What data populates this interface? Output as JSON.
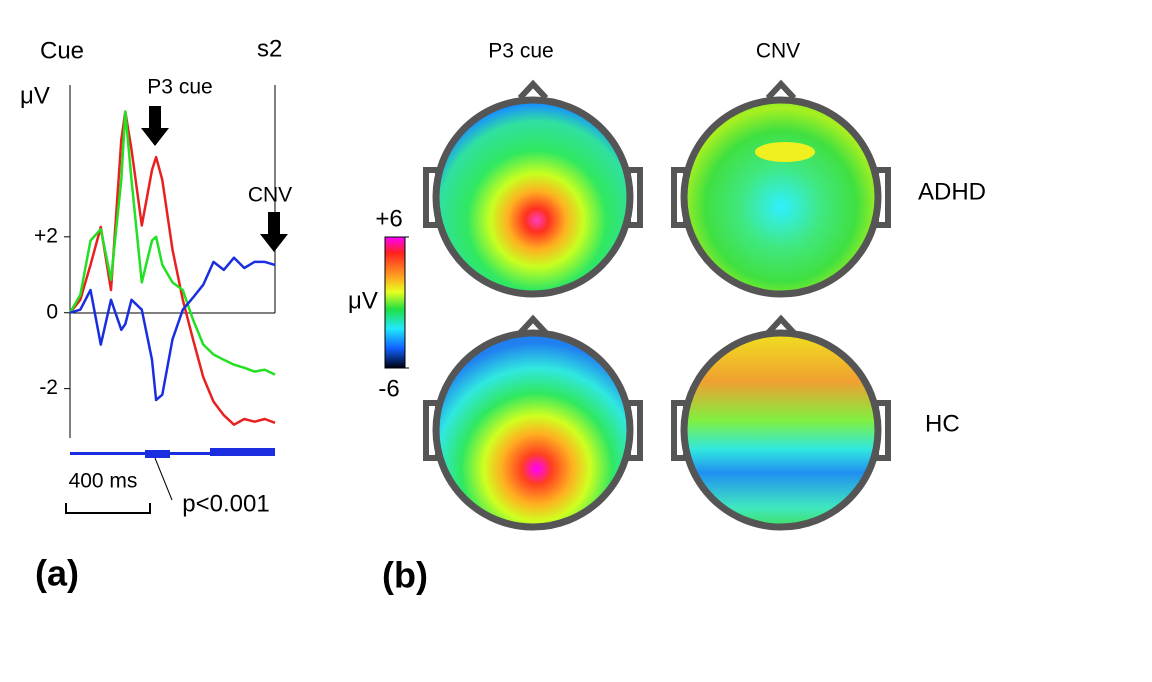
{
  "chart_data": {
    "type": "line",
    "title": "Cue",
    "end_label": "s2",
    "y_label": "μV",
    "annotations": [
      "P3 cue",
      "CNV"
    ],
    "scale_bar": "400 ms",
    "significance": "p<0.001",
    "panel": "(a)",
    "x": [
      0,
      50,
      100,
      150,
      200,
      250,
      270,
      300,
      350,
      400,
      420,
      450,
      500,
      550,
      600,
      650,
      700,
      750,
      800,
      850,
      900,
      950,
      1000
    ],
    "xlim": [
      0,
      1000
    ],
    "ylim": [
      -3.3,
      6
    ],
    "yticks": [
      {
        "value": 2,
        "label": "+2"
      },
      0,
      {
        "value": -2,
        "label": "-2"
      }
    ],
    "series": [
      {
        "color": "#e82020",
        "values": [
          0,
          0.34,
          1.26,
          2.26,
          0.6,
          4.55,
          5.3,
          4.3,
          2.3,
          3.76,
          4.1,
          3.5,
          1.66,
          0.34,
          -0.7,
          -1.7,
          -2.34,
          -2.7,
          -2.95,
          -2.8,
          -2.87,
          -2.8,
          -2.9
        ]
      },
      {
        "color": "#22e022",
        "values": [
          0,
          0.47,
          1.9,
          2.2,
          0.87,
          3.5,
          5.3,
          3.5,
          0.8,
          1.9,
          2.0,
          1.26,
          0.8,
          0.6,
          -0.18,
          -0.84,
          -1.1,
          -1.24,
          -1.37,
          -1.45,
          -1.55,
          -1.5,
          -1.63
        ]
      },
      {
        "color": "#1a2ee0",
        "values": [
          0,
          0.08,
          0.6,
          -0.84,
          0.34,
          -0.45,
          -0.3,
          0.34,
          0.08,
          -1.24,
          -2.3,
          -2.16,
          -0.7,
          0.08,
          0.4,
          0.74,
          1.34,
          1.13,
          1.45,
          1.18,
          1.34,
          1.34,
          1.26
        ]
      }
    ]
  },
  "panel_b": {
    "columns": [
      "P3 cue",
      "CNV"
    ],
    "rows": [
      "ADHD",
      "HC"
    ],
    "panel": "(b)",
    "colorbar": {
      "label": "μV",
      "lim": [
        -6,
        6
      ],
      "ticks": [
        {
          "value": 6,
          "label": "+6"
        },
        {
          "value": -6,
          "label": "-6"
        }
      ]
    }
  }
}
